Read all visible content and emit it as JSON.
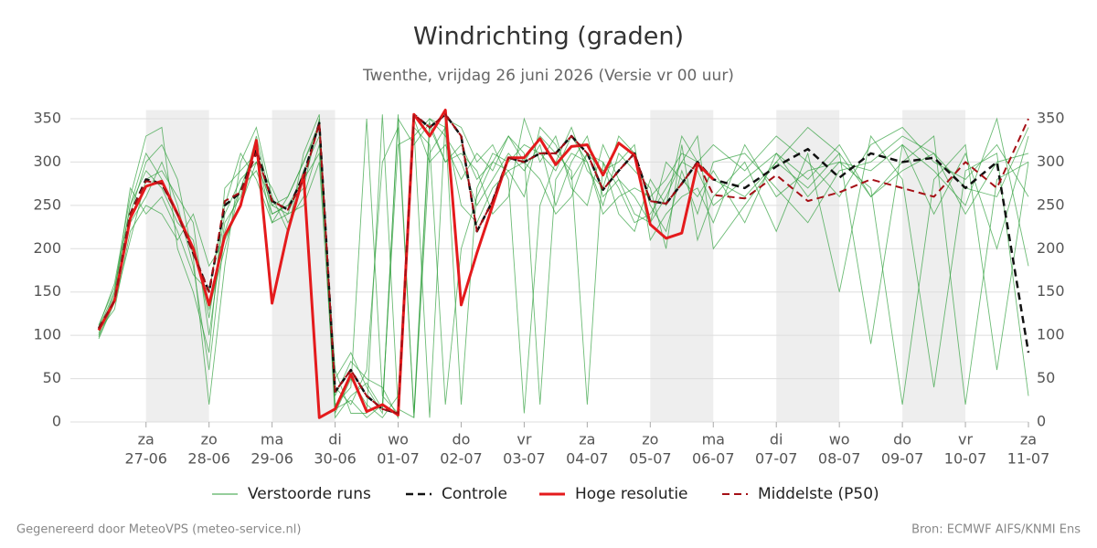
{
  "chart_data": {
    "type": "line",
    "title": "Windrichting (graden)",
    "subtitle": "Twenthe, vrijdag 26 juni 2026 (Versie vr 00 uur)",
    "x": [
      -0.75,
      -0.5,
      -0.25,
      0,
      0.25,
      0.5,
      0.75,
      1,
      1.25,
      1.5,
      1.75,
      2,
      2.25,
      2.5,
      2.75,
      3,
      3.25,
      3.5,
      3.75,
      4,
      4.25,
      4.5,
      4.75,
      5,
      5.25,
      5.5,
      5.75,
      6,
      6.25,
      6.5,
      6.75,
      7,
      7.25,
      7.5,
      7.75,
      8,
      8.25,
      8.5,
      8.75,
      9,
      9.5,
      10,
      10.5,
      11,
      11.5,
      12,
      12.5,
      13,
      13.5,
      14
    ],
    "xlim": [
      -1.2,
      14
    ],
    "xticks": [
      {
        "value": 0,
        "label": "za"
      },
      {
        "value": 1,
        "label": "zo"
      },
      {
        "value": 2,
        "label": "ma"
      },
      {
        "value": 3,
        "label": "di"
      },
      {
        "value": 4,
        "label": "wo"
      },
      {
        "value": 5,
        "label": "do"
      },
      {
        "value": 6,
        "label": "vr"
      },
      {
        "value": 7,
        "label": "za"
      },
      {
        "value": 8,
        "label": "zo"
      },
      {
        "value": 9,
        "label": "ma"
      },
      {
        "value": 10,
        "label": "di"
      },
      {
        "value": 11,
        "label": "wo"
      },
      {
        "value": 12,
        "label": "do"
      },
      {
        "value": 13,
        "label": "vr"
      },
      {
        "value": 14,
        "label": "za"
      }
    ],
    "xtick_dates": [
      "27-06",
      "28-06",
      "29-06",
      "30-06",
      "01-07",
      "02-07",
      "03-07",
      "04-07",
      "05-07",
      "06-07",
      "07-07",
      "08-07",
      "09-07",
      "10-07",
      "11-07"
    ],
    "shaded": [
      [
        0,
        1
      ],
      [
        2,
        3
      ],
      [
        8,
        9
      ],
      [
        10,
        11
      ],
      [
        12,
        13
      ]
    ],
    "ylim": [
      0,
      360
    ],
    "yticks": [
      0,
      50,
      100,
      150,
      200,
      250,
      300,
      350
    ],
    "y2lim": [
      0,
      360
    ],
    "y2ticks": [
      0,
      50,
      100,
      150,
      200,
      250,
      300,
      350
    ],
    "grid": true,
    "ensemble": {
      "name": "Verstoorde runs",
      "color": "#2e9e3a",
      "members": [
        [
          100,
          150,
          250,
          290,
          270,
          230,
          210,
          120,
          240,
          280,
          300,
          250,
          240,
          290,
          330,
          40,
          20,
          60,
          300,
          340,
          10,
          350,
          330,
          300,
          250,
          280,
          310,
          290,
          320,
          250,
          300,
          330,
          260,
          280,
          240,
          230,
          260,
          300,
          290,
          250,
          280,
          310,
          260,
          300,
          290,
          320,
          240,
          310,
          200,
          330
        ],
        [
          98,
          140,
          230,
          260,
          300,
          250,
          180,
          60,
          220,
          270,
          320,
          240,
          250,
          270,
          350,
          10,
          50,
          20,
          5,
          30,
          340,
          320,
          20,
          200,
          260,
          300,
          330,
          310,
          20,
          280,
          310,
          300,
          250,
          310,
          290,
          270,
          200,
          320,
          210,
          260,
          300,
          220,
          310,
          150,
          330,
          280,
          40,
          290,
          310,
          30
        ],
        [
          110,
          160,
          260,
          330,
          340,
          200,
          150,
          80,
          270,
          290,
          310,
          230,
          260,
          300,
          340,
          5,
          30,
          45,
          15,
          350,
          320,
          345,
          300,
          310,
          290,
          240,
          260,
          350,
          300,
          330,
          270,
          250,
          320,
          280,
          260,
          230,
          300,
          280,
          260,
          290,
          230,
          310,
          280,
          320,
          260,
          300,
          330,
          20,
          280,
          300
        ],
        [
          105,
          130,
          220,
          250,
          240,
          210,
          240,
          180,
          210,
          250,
          300,
          270,
          230,
          260,
          320,
          60,
          10,
          10,
          355,
          15,
          5,
          310,
          340,
          250,
          230,
          270,
          290,
          300,
          330,
          310,
          290,
          20,
          300,
          240,
          220,
          280,
          250,
          330,
          300,
          280,
          260,
          300,
          340,
          310,
          90,
          320,
          290,
          250,
          350,
          180
        ],
        [
          102,
          145,
          240,
          300,
          320,
          280,
          190,
          20,
          180,
          300,
          340,
          260,
          220,
          310,
          355,
          30,
          70,
          50,
          40,
          5,
          340,
          5,
          350,
          340,
          300,
          320,
          280,
          10,
          250,
          300,
          340,
          290,
          270,
          330,
          310,
          250,
          220,
          290,
          240,
          300,
          310,
          270,
          230,
          290,
          300,
          330,
          310,
          270,
          260,
          340
        ],
        [
          108,
          150,
          270,
          240,
          260,
          220,
          170,
          150,
          250,
          310,
          280,
          230,
          240,
          250,
          300,
          20,
          40,
          350,
          30,
          10,
          350,
          300,
          320,
          280,
          310,
          290,
          330,
          300,
          280,
          240,
          260,
          310,
          290,
          300,
          320,
          210,
          240,
          260,
          270,
          230,
          320,
          260,
          290,
          300,
          270,
          20,
          280,
          320,
          60,
          300
        ],
        [
          96,
          138,
          210,
          280,
          290,
          260,
          230,
          100,
          230,
          260,
          330,
          250,
          260,
          300,
          345,
          15,
          25,
          5,
          20,
          320,
          330,
          350,
          340,
          20,
          270,
          310,
          300,
          320,
          310,
          290,
          330,
          300,
          240,
          260,
          270,
          260,
          280,
          310,
          300,
          320,
          290,
          330,
          300,
          260,
          320,
          340,
          300,
          280,
          320,
          260
        ],
        [
          112,
          155,
          250,
          310,
          280,
          240,
          200,
          130,
          200,
          270,
          290,
          240,
          250,
          280,
          310,
          50,
          80,
          40,
          10,
          355,
          5,
          340,
          300,
          320,
          280,
          300,
          290,
          260,
          340,
          320,
          280,
          310,
          300,
          270,
          230,
          240,
          270,
          300,
          330,
          200,
          250,
          300,
          270,
          310,
          260,
          290,
          310,
          240,
          300,
          310
        ]
      ]
    },
    "series": [
      {
        "name": "Controle",
        "color": "#111111",
        "dash": true,
        "width": 2.5,
        "values": [
          108,
          140,
          240,
          280,
          275,
          240,
          195,
          150,
          250,
          265,
          315,
          255,
          245,
          285,
          345,
          35,
          60,
          30,
          15,
          10,
          355,
          340,
          355,
          330,
          220,
          255,
          305,
          300,
          310,
          310,
          330,
          310,
          268,
          290,
          310,
          255,
          252,
          275,
          300,
          280,
          270,
          295,
          315,
          282,
          310,
          300,
          305,
          270,
          300,
          80
        ]
      },
      {
        "name": "Hoge resolutie",
        "color": "#e41a1c",
        "dash": false,
        "width": 3,
        "values": [
          106,
          140,
          235,
          272,
          278,
          240,
          200,
          135,
          215,
          250,
          325,
          137,
          220,
          285,
          5,
          15,
          55,
          12,
          20,
          8,
          355,
          330,
          360,
          135,
          195,
          250,
          305,
          305,
          327,
          297,
          318,
          320,
          285,
          322,
          308,
          228,
          212,
          218,
          298,
          280,
          null,
          null,
          null,
          null,
          null,
          null,
          null,
          null,
          null,
          null
        ]
      },
      {
        "name": "Middelste (P50)",
        "color": "#a50f15",
        "dash": true,
        "width": 2,
        "values": [
          108,
          140,
          240,
          278,
          275,
          240,
          195,
          150,
          255,
          265,
          310,
          255,
          245,
          280,
          345,
          35,
          60,
          30,
          15,
          10,
          355,
          340,
          355,
          330,
          220,
          255,
          305,
          300,
          310,
          310,
          330,
          310,
          268,
          290,
          310,
          255,
          252,
          275,
          300,
          262,
          258,
          285,
          255,
          265,
          280,
          270,
          260,
          300,
          270,
          350
        ]
      }
    ]
  },
  "footer": {
    "left": "Gegenereerd door MeteoVPS (meteo-service.nl)",
    "right": "Bron: ECMWF AIFS/KNMI Ens"
  }
}
